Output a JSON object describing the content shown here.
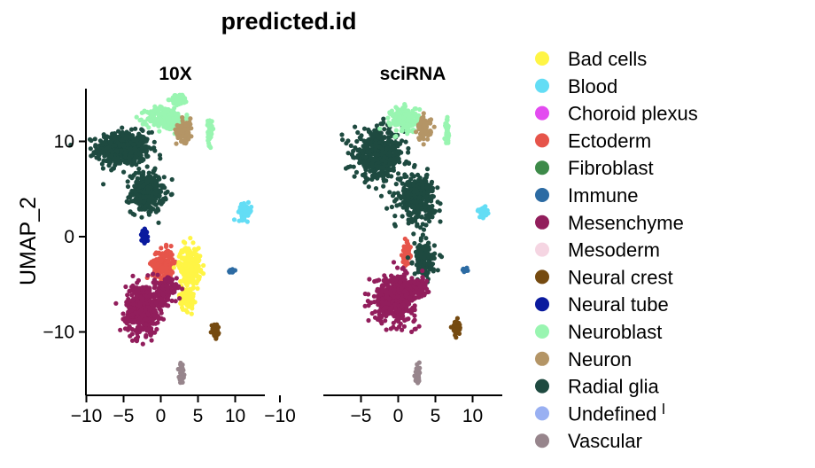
{
  "chart_data": {
    "type": "scatter",
    "title": "predicted.id",
    "xlabel": "",
    "ylabel": "UMAP_2",
    "xlim": [
      -12,
      14.5
    ],
    "ylim": [
      -16.5,
      16
    ],
    "panels": [
      {
        "name": "10X",
        "xticks": [
          "−10",
          "−5",
          "0",
          "5",
          "10"
        ],
        "xtick_values": [
          -10,
          -5,
          0,
          5,
          10
        ]
      },
      {
        "name": "sciRNA",
        "xticks": [
          "−5",
          "0",
          "5",
          "10"
        ],
        "xtick_values": [
          -5,
          0,
          5,
          10
        ]
      }
    ],
    "extra_tick_label": "−10",
    "yticks": [
      "10",
      "0",
      "−10"
    ],
    "ytick_values": [
      10,
      0,
      -10
    ],
    "legend": [
      {
        "label": "Bad cells",
        "color": "#FFF545"
      },
      {
        "label": "Blood",
        "color": "#63DDF5"
      },
      {
        "label": "Choroid plexus",
        "color": "#E34BF0"
      },
      {
        "label": "Ectoderm",
        "color": "#E6544A"
      },
      {
        "label": "Fibroblast",
        "color": "#3D8A49"
      },
      {
        "label": "Immune",
        "color": "#2C6BA3"
      },
      {
        "label": "Mesenchyme",
        "color": "#921E5C"
      },
      {
        "label": "Mesoderm",
        "color": "#F5D5E2"
      },
      {
        "label": "Neural crest",
        "color": "#754A10"
      },
      {
        "label": "Neural tube",
        "color": "#0A1A9E"
      },
      {
        "label": "Neuroblast",
        "color": "#99F5B1"
      },
      {
        "label": "Neuron",
        "color": "#B49566"
      },
      {
        "label": "Radial glia",
        "color": "#1E4A40"
      },
      {
        "label": "Undefined",
        "color": "#99B0F2"
      },
      {
        "label": "Vascular",
        "color": "#97858C"
      }
    ],
    "clusters": {
      "10X": [
        {
          "type": "Radial glia",
          "x": -5.0,
          "y": 9.2,
          "sx": 3.2,
          "sy": 1.6,
          "n": 520
        },
        {
          "type": "Radial glia",
          "x": -1.8,
          "y": 4.6,
          "sx": 2.0,
          "sy": 1.9,
          "n": 300
        },
        {
          "type": "Neuroblast",
          "x": 0.7,
          "y": 12.4,
          "sx": 2.3,
          "sy": 1.1,
          "n": 240
        },
        {
          "type": "Neuroblast",
          "x": 2.5,
          "y": 14.4,
          "sx": 1.0,
          "sy": 0.5,
          "n": 60
        },
        {
          "type": "Neuron",
          "x": 3.2,
          "y": 11.2,
          "sx": 1.0,
          "sy": 1.1,
          "n": 100
        },
        {
          "type": "Neuroblast",
          "x": 6.6,
          "y": 11.0,
          "sx": 0.25,
          "sy": 1.3,
          "n": 45
        },
        {
          "type": "Blood",
          "x": 11.3,
          "y": 2.6,
          "sx": 0.8,
          "sy": 0.7,
          "n": 70
        },
        {
          "type": "Neural tube",
          "x": -2.2,
          "y": 0.0,
          "sx": 0.35,
          "sy": 0.6,
          "n": 55
        },
        {
          "type": "Ectoderm",
          "x": 0.3,
          "y": -2.9,
          "sx": 1.3,
          "sy": 1.4,
          "n": 190
        },
        {
          "type": "Bad cells",
          "x": 3.9,
          "y": -3.0,
          "sx": 1.3,
          "sy": 1.8,
          "n": 220
        },
        {
          "type": "Bad cells",
          "x": 3.5,
          "y": -6.5,
          "sx": 0.9,
          "sy": 1.1,
          "n": 90
        },
        {
          "type": "Mesenchyme",
          "x": -2.5,
          "y": -7.6,
          "sx": 2.0,
          "sy": 2.3,
          "n": 500
        },
        {
          "type": "Mesenchyme",
          "x": 0.7,
          "y": -5.6,
          "sx": 1.3,
          "sy": 1.2,
          "n": 130
        },
        {
          "type": "Immune",
          "x": 9.5,
          "y": -3.6,
          "sx": 0.4,
          "sy": 0.15,
          "n": 25
        },
        {
          "type": "Neural crest",
          "x": 7.3,
          "y": -9.9,
          "sx": 0.4,
          "sy": 0.6,
          "n": 45
        },
        {
          "type": "Vascular",
          "x": 2.8,
          "y": -14.3,
          "sx": 0.3,
          "sy": 0.9,
          "n": 45
        }
      ],
      "sciRNA": [
        {
          "type": "Radial glia",
          "x": -2.6,
          "y": 8.6,
          "sx": 3.0,
          "sy": 2.3,
          "n": 520
        },
        {
          "type": "Radial glia",
          "x": 2.5,
          "y": 4.1,
          "sx": 2.2,
          "sy": 2.2,
          "n": 320
        },
        {
          "type": "Neuroblast",
          "x": 0.9,
          "y": 12.3,
          "sx": 1.7,
          "sy": 1.2,
          "n": 190
        },
        {
          "type": "Neuron",
          "x": 3.5,
          "y": 11.3,
          "sx": 0.8,
          "sy": 1.1,
          "n": 90
        },
        {
          "type": "Neuroblast",
          "x": 6.6,
          "y": 11.1,
          "sx": 0.25,
          "sy": 1.2,
          "n": 40
        },
        {
          "type": "Blood",
          "x": 11.4,
          "y": 2.6,
          "sx": 0.6,
          "sy": 0.5,
          "n": 45
        },
        {
          "type": "Ectoderm",
          "x": 1.1,
          "y": -1.9,
          "sx": 0.5,
          "sy": 1.1,
          "n": 60
        },
        {
          "type": "Radial glia",
          "x": 3.5,
          "y": -2.4,
          "sx": 1.3,
          "sy": 1.5,
          "n": 140
        },
        {
          "type": "Mesenchyme",
          "x": -0.4,
          "y": -6.4,
          "sx": 2.5,
          "sy": 2.2,
          "n": 520
        },
        {
          "type": "Mesenchyme",
          "x": 2.8,
          "y": -5.4,
          "sx": 1.1,
          "sy": 1.0,
          "n": 110
        },
        {
          "type": "Immune",
          "x": 9.0,
          "y": -3.5,
          "sx": 0.3,
          "sy": 0.15,
          "n": 20
        },
        {
          "type": "Neural crest",
          "x": 7.8,
          "y": -9.5,
          "sx": 0.4,
          "sy": 0.7,
          "n": 40
        },
        {
          "type": "Vascular",
          "x": 2.6,
          "y": -14.5,
          "sx": 0.25,
          "sy": 0.9,
          "n": 40
        }
      ]
    }
  }
}
